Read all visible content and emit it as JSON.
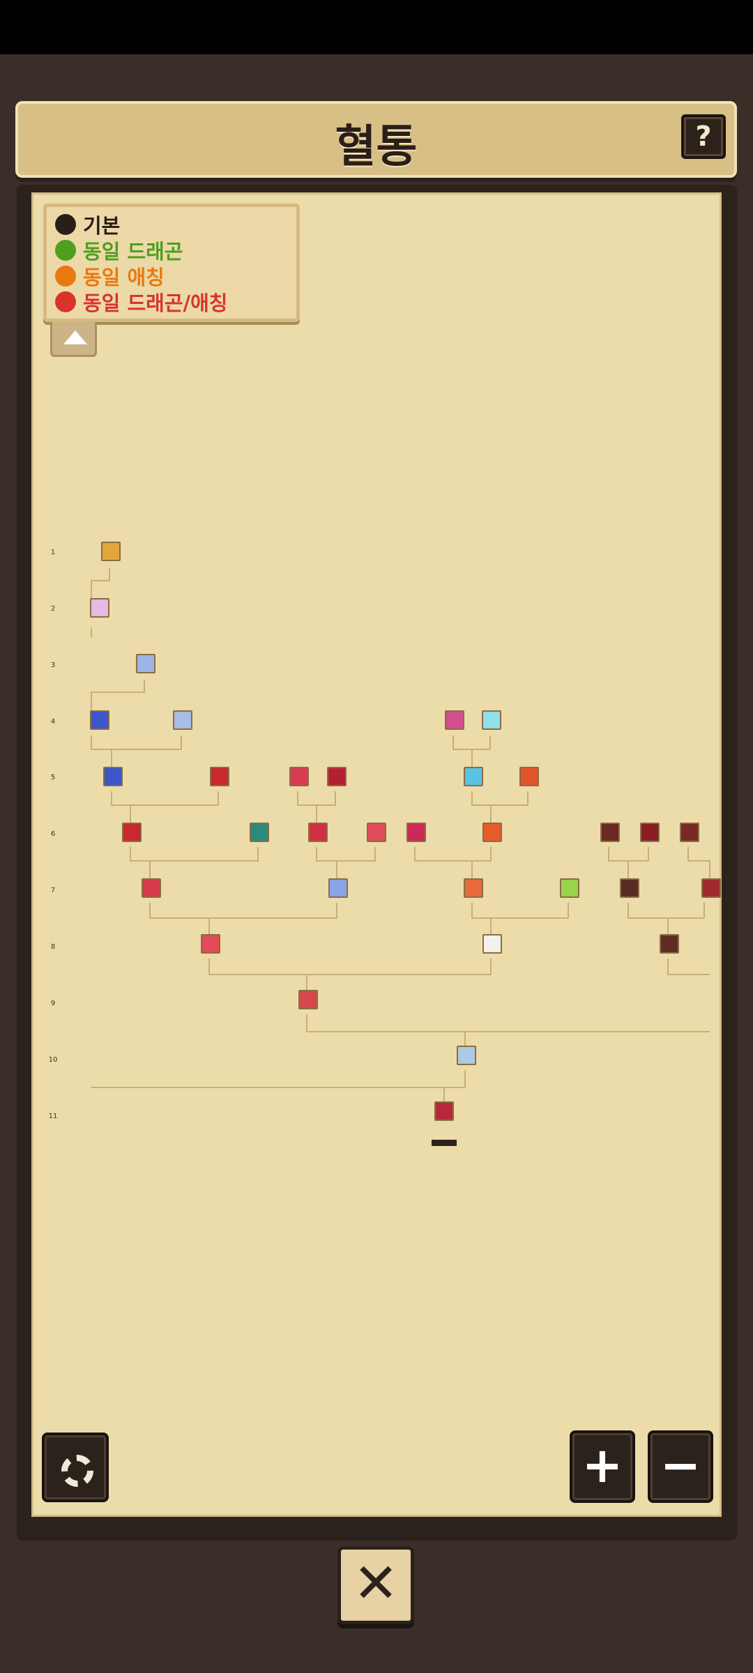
{
  "header": {
    "title": "혈통",
    "help_label": "?"
  },
  "legend": {
    "items": [
      {
        "label": "기본",
        "color": "#2a1f18"
      },
      {
        "label": "동일 드래곤",
        "color": "#4f9e1f"
      },
      {
        "label": "동일 애칭",
        "color": "#e9790f"
      },
      {
        "label": "동일 드래곤/애칭",
        "color": "#d8342a"
      }
    ]
  },
  "generations": [
    "1",
    "2",
    "3",
    "4",
    "5",
    "6",
    "7",
    "8",
    "9",
    "10",
    "11"
  ],
  "current_badge": "",
  "controls": {
    "zoom_in": "+",
    "zoom_out": "−",
    "close": "✕"
  },
  "colors": {
    "frame": "#2c221c",
    "parchment": "#ecdcaa",
    "line": "#c8ae78"
  }
}
